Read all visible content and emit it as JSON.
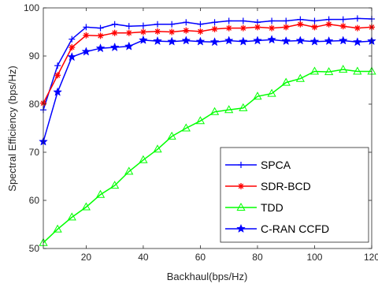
{
  "chart_data": {
    "type": "line",
    "title": "",
    "xlabel": "Backhaul(bps/Hz)",
    "ylabel": "Spectral Efficiency (bps/Hz)",
    "xlim": [
      5,
      120
    ],
    "ylim": [
      50,
      100
    ],
    "xticks": [
      20,
      40,
      60,
      80,
      100,
      120
    ],
    "yticks": [
      50,
      60,
      70,
      80,
      90,
      100
    ],
    "grid": false,
    "legend_position": "lower-right",
    "x": [
      5,
      10,
      15,
      20,
      25,
      30,
      35,
      40,
      45,
      50,
      55,
      60,
      65,
      70,
      75,
      80,
      85,
      90,
      95,
      100,
      105,
      110,
      115,
      120
    ],
    "series": [
      {
        "name": "SPCA",
        "color": "#0000ff",
        "marker": "plus",
        "values": [
          78.8,
          88.0,
          93.5,
          96.0,
          95.8,
          96.6,
          96.2,
          96.3,
          96.6,
          96.6,
          97.0,
          96.6,
          97.0,
          97.3,
          97.3,
          97.0,
          97.3,
          97.3,
          97.6,
          97.3,
          97.6,
          97.6,
          97.8,
          97.7
        ]
      },
      {
        "name": "SDR-BCD",
        "color": "#ff0000",
        "marker": "asterisk",
        "values": [
          80.2,
          86.0,
          91.8,
          94.3,
          94.2,
          94.8,
          94.8,
          95.0,
          95.1,
          95.0,
          95.3,
          95.1,
          95.6,
          95.8,
          95.8,
          96.0,
          95.8,
          96.0,
          96.6,
          96.0,
          96.6,
          96.2,
          95.8,
          96.0
        ]
      },
      {
        "name": "TDD",
        "color": "#00ff00",
        "marker": "triangle",
        "values": [
          51.2,
          54.0,
          56.5,
          58.6,
          61.2,
          63.1,
          66.0,
          68.4,
          70.6,
          73.3,
          75.0,
          76.5,
          78.4,
          78.8,
          79.2,
          81.6,
          82.2,
          84.5,
          85.3,
          86.8,
          86.7,
          87.2,
          86.8,
          86.8
        ]
      },
      {
        "name": "C-RAN CCFD",
        "color": "#0000ff",
        "marker": "star",
        "values": [
          72.2,
          82.5,
          89.8,
          90.9,
          91.6,
          91.8,
          92.0,
          93.3,
          93.1,
          93.0,
          93.2,
          93.0,
          92.9,
          93.2,
          93.0,
          93.2,
          93.4,
          93.1,
          93.2,
          93.0,
          93.1,
          93.2,
          92.9,
          93.1
        ]
      }
    ]
  }
}
